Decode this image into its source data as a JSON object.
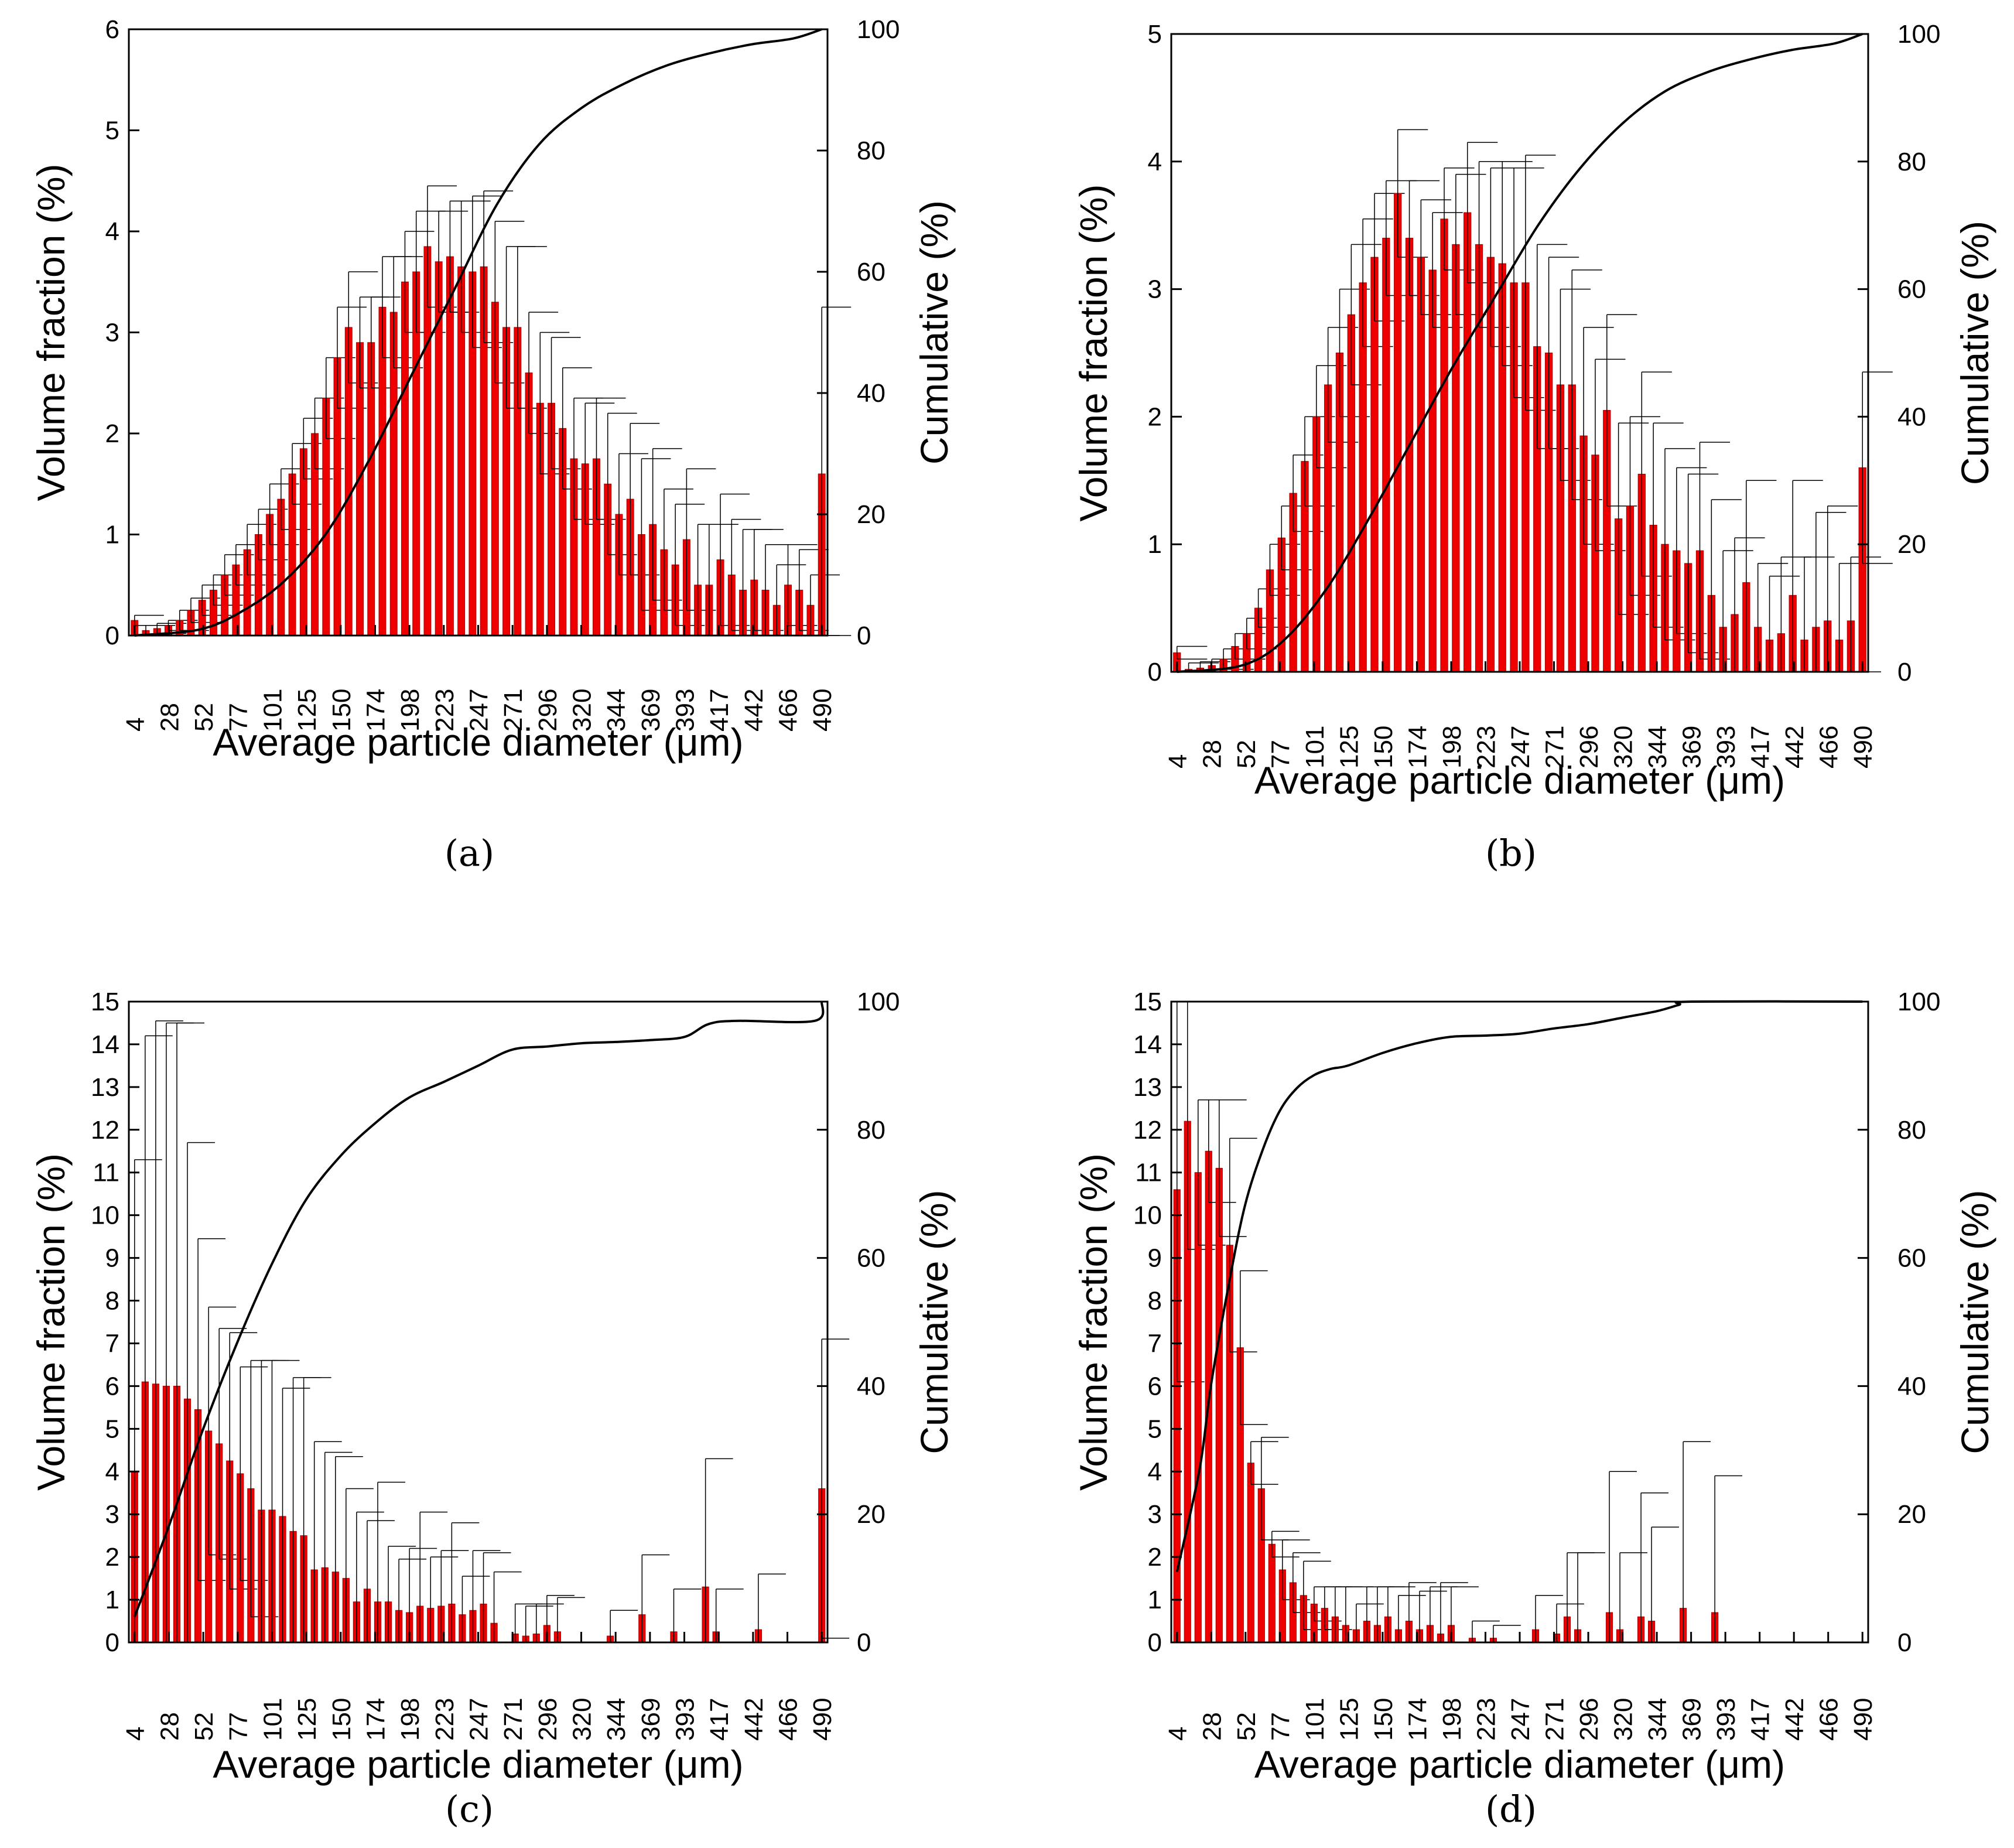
{
  "figure": {
    "colors": {
      "bar": "#ee0000",
      "bar_edge": "#aa0000",
      "line": "#000000",
      "error": "#000000"
    }
  },
  "chart_data": [
    {
      "type": "bar",
      "panel": "(a)",
      "xlabel": "Average particle diameter (μm)",
      "ylabel_left": "Volume fraction (%)",
      "ylabel_right": "Cumulative (%)",
      "ylim_left": [
        0,
        6
      ],
      "ylim_right": [
        0,
        100
      ],
      "yticks_left": [
        0,
        1,
        2,
        3,
        4,
        5,
        6
      ],
      "yticks_right": [
        0,
        20,
        40,
        60,
        80,
        100
      ],
      "xlim": [
        4,
        490
      ],
      "bin_width": 8.1,
      "xtick_labels": [
        "4",
        "28",
        "52",
        "77",
        "101",
        "125",
        "150",
        "174",
        "198",
        "223",
        "247",
        "271",
        "296",
        "320",
        "344",
        "369",
        "393",
        "417",
        "442",
        "466",
        "490"
      ],
      "series": [
        {
          "name": "Volume fraction",
          "kind": "bar",
          "values": [
            0.15,
            0.05,
            0.07,
            0.1,
            0.15,
            0.25,
            0.35,
            0.45,
            0.6,
            0.7,
            0.85,
            1.0,
            1.2,
            1.35,
            1.6,
            1.85,
            2.0,
            2.35,
            2.75,
            3.05,
            2.9,
            2.9,
            3.25,
            3.2,
            3.5,
            3.6,
            3.85,
            3.7,
            3.75,
            3.65,
            3.6,
            3.65,
            3.3,
            3.05,
            3.05,
            2.6,
            2.3,
            2.3,
            2.05,
            1.75,
            1.7,
            1.75,
            1.5,
            1.2,
            1.35,
            1.0,
            1.1,
            0.85,
            0.7,
            0.95,
            0.5,
            0.5,
            0.75,
            0.6,
            0.45,
            0.55,
            0.45,
            0.3,
            0.5,
            0.45,
            0.3,
            1.6
          ],
          "errors": [
            0.05,
            0.05,
            0.05,
            0.05,
            0.1,
            0.12,
            0.15,
            0.15,
            0.2,
            0.2,
            0.25,
            0.25,
            0.3,
            0.3,
            0.3,
            0.3,
            0.35,
            0.4,
            0.5,
            0.55,
            0.45,
            0.45,
            0.5,
            0.55,
            0.5,
            0.6,
            0.6,
            0.5,
            0.55,
            0.65,
            0.75,
            0.75,
            0.8,
            0.8,
            0.8,
            0.6,
            0.7,
            0.65,
            0.6,
            0.6,
            0.6,
            0.6,
            0.7,
            0.6,
            0.75,
            0.75,
            0.75,
            0.6,
            0.6,
            0.7,
            0.6,
            0.6,
            0.65,
            0.55,
            0.6,
            0.5,
            0.45,
            0.4,
            0.4,
            0.4,
            0.3,
            1.65
          ]
        },
        {
          "name": "Cumulative",
          "kind": "line",
          "axis": "right",
          "x": [
            4,
            50,
            80,
            110,
            140,
            170,
            200,
            230,
            260,
            290,
            320,
            350,
            380,
            410,
            440,
            470,
            490
          ],
          "values": [
            0,
            1,
            4,
            9,
            17,
            29,
            43,
            57,
            71,
            81,
            87,
            91,
            94,
            96,
            97.5,
            98.5,
            100
          ]
        }
      ]
    },
    {
      "type": "bar",
      "panel": "(b)",
      "xlabel": "Average particle diameter (μm)",
      "ylabel_left": "Volume fraction (%)",
      "ylabel_right": "Cumulative (%)",
      "ylim_left": [
        0,
        5
      ],
      "ylim_right": [
        0,
        100
      ],
      "yticks_left": [
        0,
        1,
        2,
        3,
        4,
        5
      ],
      "yticks_right": [
        0,
        20,
        40,
        60,
        80,
        100
      ],
      "xlim": [
        4,
        490
      ],
      "bin_width": 8.1,
      "xtick_labels": [
        "4",
        "28",
        "52",
        "77",
        "101",
        "125",
        "150",
        "174",
        "198",
        "223",
        "247",
        "271",
        "296",
        "320",
        "344",
        "369",
        "393",
        "417",
        "442",
        "466",
        "490"
      ],
      "series": [
        {
          "name": "Volume fraction",
          "kind": "bar",
          "values": [
            0.15,
            0.02,
            0.03,
            0.05,
            0.1,
            0.2,
            0.3,
            0.5,
            0.8,
            1.05,
            1.4,
            1.65,
            2.0,
            2.25,
            2.5,
            2.8,
            3.05,
            3.25,
            3.4,
            3.75,
            3.4,
            3.25,
            3.15,
            3.55,
            3.35,
            3.6,
            3.35,
            3.25,
            3.2,
            3.05,
            3.05,
            2.55,
            2.5,
            2.25,
            2.25,
            1.85,
            1.7,
            2.05,
            1.2,
            1.3,
            1.55,
            1.15,
            1.0,
            0.95,
            0.85,
            0.95,
            0.6,
            0.35,
            0.45,
            0.7,
            0.35,
            0.25,
            0.3,
            0.6,
            0.25,
            0.35,
            0.4,
            0.25,
            0.4,
            1.6
          ],
          "errors": [
            0.05,
            0.05,
            0.05,
            0.05,
            0.08,
            0.1,
            0.12,
            0.15,
            0.2,
            0.25,
            0.3,
            0.35,
            0.4,
            0.45,
            0.5,
            0.55,
            0.5,
            0.5,
            0.45,
            0.5,
            0.45,
            0.45,
            0.45,
            0.4,
            0.55,
            0.55,
            0.65,
            0.7,
            0.8,
            0.9,
            1.0,
            0.8,
            0.75,
            0.75,
            0.9,
            0.85,
            0.75,
            0.75,
            0.75,
            0.7,
            0.8,
            0.8,
            0.75,
            0.65,
            0.7,
            0.85,
            0.75,
            0.6,
            0.6,
            0.8,
            0.5,
            0.5,
            0.6,
            0.9,
            0.65,
            0.9,
            0.9,
            0.6,
            0.5,
            0.75
          ]
        },
        {
          "name": "Cumulative",
          "kind": "line",
          "axis": "right",
          "x": [
            4,
            50,
            80,
            110,
            140,
            170,
            200,
            230,
            260,
            290,
            320,
            350,
            380,
            410,
            440,
            470,
            490
          ],
          "values": [
            0,
            1,
            5,
            13,
            24,
            36,
            48,
            59,
            70,
            79,
            86,
            91,
            94,
            96,
            97.5,
            98.5,
            100
          ]
        }
      ]
    },
    {
      "type": "bar",
      "panel": "(c)",
      "xlabel": "Average particle diameter (μm)",
      "ylabel_left": "Volume fraction (%)",
      "ylabel_right": "Cumulative (%)",
      "ylim_left": [
        0,
        15
      ],
      "ylim_right": [
        0,
        100
      ],
      "yticks_left": [
        0,
        1,
        2,
        3,
        4,
        5,
        6,
        7,
        8,
        9,
        10,
        11,
        12,
        13,
        14,
        15
      ],
      "yticks_right": [
        0,
        20,
        40,
        60,
        80,
        100
      ],
      "xlim": [
        4,
        490
      ],
      "bin_width": 8.1,
      "xtick_labels": [
        "4",
        "28",
        "52",
        "77",
        "101",
        "125",
        "150",
        "174",
        "198",
        "223",
        "247",
        "271",
        "296",
        "320",
        "344",
        "369",
        "393",
        "417",
        "442",
        "466",
        "490"
      ],
      "series": [
        {
          "name": "Volume fraction",
          "kind": "bar",
          "values": [
            4.0,
            6.1,
            6.05,
            6.0,
            6.0,
            5.7,
            5.45,
            4.95,
            4.65,
            4.25,
            3.95,
            3.6,
            3.1,
            3.1,
            2.95,
            2.6,
            2.5,
            1.7,
            1.75,
            1.65,
            1.5,
            0.95,
            1.25,
            0.95,
            0.95,
            0.75,
            0.7,
            0.85,
            0.8,
            0.85,
            0.9,
            0.65,
            0.75,
            0.9,
            0.45,
            0,
            0.2,
            0.15,
            0.2,
            0.4,
            0.25,
            0,
            0,
            0,
            0,
            0.15,
            0,
            0,
            0.65,
            0,
            0,
            0.25,
            0,
            0,
            1.3,
            0.25,
            0,
            0,
            0,
            0.3,
            0,
            0,
            0,
            0,
            0,
            3.6
          ],
          "errors": [
            7.3,
            8.1,
            8.5,
            8.5,
            8.5,
            6.0,
            4.0,
            2.9,
            2.7,
            3.0,
            2.5,
            3.0,
            3.5,
            3.5,
            3.0,
            3.6,
            3.7,
            3.0,
            2.7,
            2.7,
            2.1,
            2.1,
            1.6,
            2.8,
            1.3,
            1.2,
            1.5,
            2.2,
            1.2,
            1.3,
            1.9,
            0.9,
            1.4,
            1.2,
            1.2,
            0,
            0.7,
            0.7,
            0.7,
            0.7,
            0.8,
            0,
            0,
            0,
            0,
            0.6,
            0,
            0,
            1.4,
            0,
            0,
            1.0,
            0,
            0,
            3.0,
            1.0,
            0,
            0,
            0,
            1.3,
            0,
            0,
            0,
            0,
            0,
            3.5
          ]
        },
        {
          "name": "Cumulative",
          "kind": "line",
          "axis": "right",
          "x": [
            4,
            28,
            52,
            77,
            101,
            125,
            150,
            174,
            198,
            223,
            247,
            271,
            296,
            320,
            344,
            369,
            393,
            410,
            430,
            485,
            490
          ],
          "values": [
            4,
            18,
            33,
            47,
            59,
            69,
            76,
            81,
            85,
            87.5,
            90,
            92.5,
            93,
            93.5,
            93.7,
            94,
            94.5,
            96.5,
            97,
            97,
            100
          ]
        }
      ]
    },
    {
      "type": "bar",
      "panel": "(d)",
      "xlabel": "Average particle diameter (μm)",
      "ylabel_left": "Volume fraction (%)",
      "ylabel_right": "Cumulative (%)",
      "ylim_left": [
        0,
        15
      ],
      "ylim_right": [
        0,
        100
      ],
      "yticks_left": [
        0,
        1,
        2,
        3,
        4,
        5,
        6,
        7,
        8,
        9,
        10,
        11,
        12,
        13,
        14,
        15
      ],
      "yticks_right": [
        0,
        20,
        40,
        60,
        80,
        100
      ],
      "xlim": [
        4,
        490
      ],
      "bin_width": 8.1,
      "xtick_labels": [
        "4",
        "28",
        "52",
        "77",
        "101",
        "125",
        "150",
        "174",
        "198",
        "223",
        "247",
        "271",
        "296",
        "320",
        "344",
        "369",
        "393",
        "417",
        "442",
        "466",
        "490"
      ],
      "series": [
        {
          "name": "Volume fraction",
          "kind": "bar",
          "values": [
            10.6,
            12.2,
            11.0,
            11.5,
            11.1,
            9.3,
            6.9,
            4.2,
            3.6,
            2.3,
            1.7,
            1.4,
            1.1,
            0.9,
            0.8,
            0.6,
            0.4,
            0.3,
            0.5,
            0.4,
            0.6,
            0.3,
            0.5,
            0.3,
            0.4,
            0.2,
            0.4,
            0,
            0.1,
            0,
            0.1,
            0,
            0,
            0,
            0.3,
            0,
            0.2,
            0.6,
            0.3,
            0,
            0,
            0.7,
            0.3,
            0,
            0.6,
            0.5,
            0,
            0,
            0.8,
            0,
            0,
            0.7,
            0,
            0,
            0,
            0,
            0,
            0,
            0,
            0,
            0,
            0,
            0,
            0,
            0,
            0
          ],
          "errors": [
            4.5,
            3.0,
            1.7,
            1.2,
            1.6,
            2.5,
            1.8,
            0.5,
            1.2,
            0.3,
            0.7,
            0.7,
            0.8,
            0.4,
            0.5,
            0.7,
            0.9,
            0.6,
            0.8,
            0.9,
            0.7,
            0.8,
            0.9,
            0.9,
            0.9,
            1.2,
            0.9,
            0,
            0.4,
            0,
            0.3,
            0,
            0,
            0,
            0.8,
            0,
            0.7,
            1.5,
            1.8,
            0,
            0,
            3.3,
            1.8,
            0,
            2.9,
            2.2,
            0,
            0,
            3.9,
            0,
            0,
            3.2,
            0,
            0,
            0,
            0,
            0,
            0,
            0,
            0,
            0,
            0,
            0,
            0,
            0,
            0
          ]
        },
        {
          "name": "Cumulative",
          "kind": "line",
          "axis": "right",
          "x": [
            4,
            20,
            28,
            40,
            52,
            65,
            77,
            89,
            101,
            113,
            125,
            150,
            174,
            198,
            223,
            247,
            271,
            296,
            320,
            344,
            360,
            369,
            490
          ],
          "values": [
            11,
            27,
            40,
            55,
            68,
            77,
            83,
            86.5,
            88.5,
            89.5,
            90,
            92,
            93.5,
            94.5,
            94.7,
            95,
            95.8,
            96.5,
            97.5,
            98.5,
            99.5,
            100,
            100
          ]
        }
      ]
    }
  ]
}
